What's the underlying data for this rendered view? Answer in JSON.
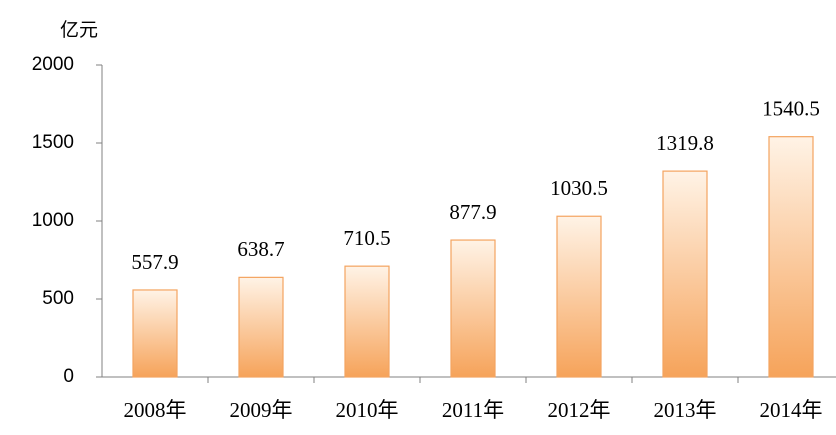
{
  "chart_data": {
    "type": "bar",
    "y_label": "亿元",
    "categories": [
      "2008年",
      "2009年",
      "2010年",
      "2011年",
      "2012年",
      "2013年",
      "2014年"
    ],
    "values": [
      557.9,
      638.7,
      710.5,
      877.9,
      1030.5,
      1319.8,
      1540.5
    ],
    "color": "#f4a460",
    "ylim": [
      0,
      2000
    ],
    "yticks": [
      0,
      500,
      1000,
      1500,
      2000
    ],
    "grid": false
  }
}
